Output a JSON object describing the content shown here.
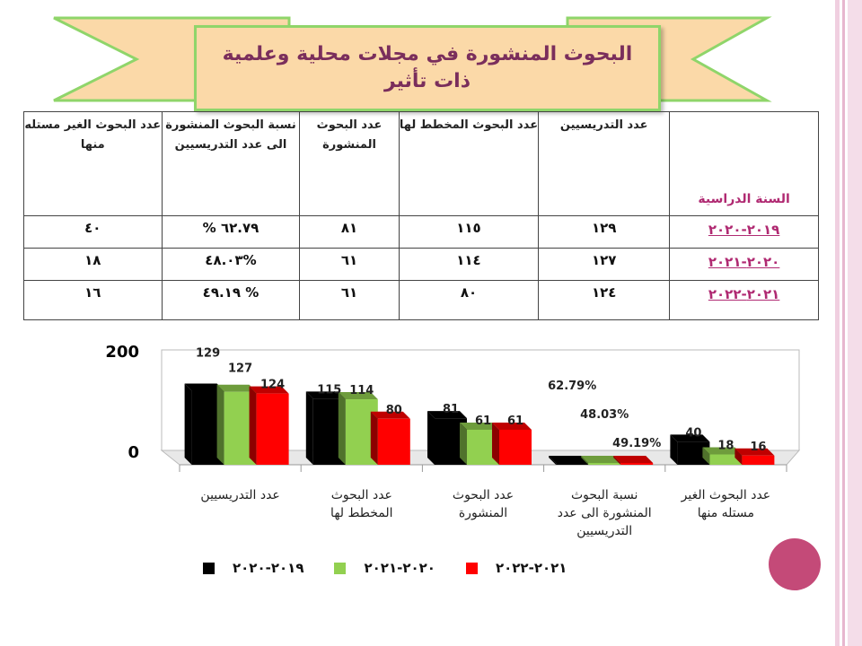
{
  "title": "البحوث المنشورة في مجلات محلية وعلمية ذات تأثير",
  "table": {
    "year_header": "السنة الدراسية",
    "headers": [
      "عدد التدريسيين",
      "عدد البحوث المخطط لها",
      "عدد البحوث المنشورة",
      "نسبة البحوث المنشورة الى عدد التدريسيين",
      "عدد البحوث الغير مستله منها"
    ],
    "rows": [
      {
        "year": "٢٠١٩-٢٠٢٠",
        "values": [
          "١٢٩",
          "١١٥",
          "٨١",
          "٦٢.٧٩ %",
          "٤٠"
        ]
      },
      {
        "year": "٢٠٢٠-٢٠٢١",
        "values": [
          "١٢٧",
          "١١٤",
          "٦١",
          "%٤٨.٠٣",
          "١٨"
        ]
      },
      {
        "year": "٢٠٢١-٢٠٢٢",
        "values": [
          "١٢٤",
          "٨٠",
          "٦١",
          "% ٤٩.١٩",
          "١٦"
        ]
      }
    ]
  },
  "chart_data": {
    "type": "bar",
    "categories": [
      "عدد التدريسيين",
      "عدد البحوث المخطط لها",
      "عدد البحوث المنشورة",
      "نسبة البحوث المنشورة الى عدد التدريسيين",
      "عدد البحوث الغير مستله منها"
    ],
    "series": [
      {
        "name": "٢٠١٩-٢٠٢٠",
        "color": "#000000",
        "values": [
          129,
          115,
          81,
          0.6279,
          40
        ],
        "labels": [
          "129",
          "115",
          "81",
          "62.79%",
          "40"
        ]
      },
      {
        "name": "٢٠٢٠-٢٠٢١",
        "color": "#92d050",
        "values": [
          127,
          114,
          61,
          0.4803,
          18
        ],
        "labels": [
          "127",
          "114",
          "61",
          "48.03%",
          "18"
        ]
      },
      {
        "name": "٢٠٢١-٢٠٢٢",
        "color": "#ff0000",
        "values": [
          124,
          80,
          61,
          0.4919,
          16
        ],
        "labels": [
          "124",
          "80",
          "61",
          "49.19%",
          "16"
        ]
      }
    ],
    "ylim": [
      0,
      200
    ],
    "yticks": [
      "0",
      "200"
    ],
    "grid": false,
    "legend": "bottom"
  },
  "colors": {
    "title_text": "#7a2e5c",
    "title_fill": "#fbd9a8",
    "title_border": "#8fd56a",
    "year_text": "#b02a72",
    "accent_circle": "#c44a78"
  }
}
